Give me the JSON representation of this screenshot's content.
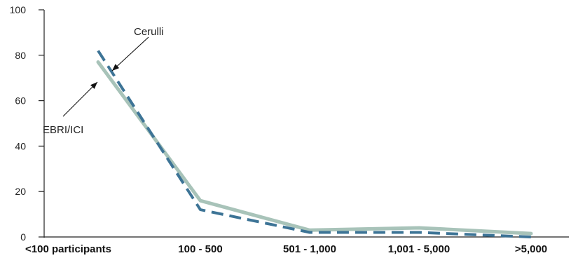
{
  "chart_data": {
    "type": "line",
    "categories": [
      "<100 participants",
      "100 - 500",
      "501 - 1,000",
      "1,001 - 5,000",
      ">5,000"
    ],
    "series": [
      {
        "name": "Cerulli",
        "values": [
          82,
          12,
          2,
          2,
          0
        ],
        "color": "#3d7496",
        "style": "dashed"
      },
      {
        "name": "EBRI/ICI",
        "values": [
          77,
          16,
          3,
          4,
          1.5
        ],
        "color": "#a8c3b9",
        "style": "solid"
      }
    ],
    "yticks": [
      0,
      20,
      40,
      60,
      80,
      100
    ],
    "ylim": [
      0,
      100
    ],
    "grid": false,
    "xlabel": "",
    "ylabel": "",
    "title": ""
  }
}
